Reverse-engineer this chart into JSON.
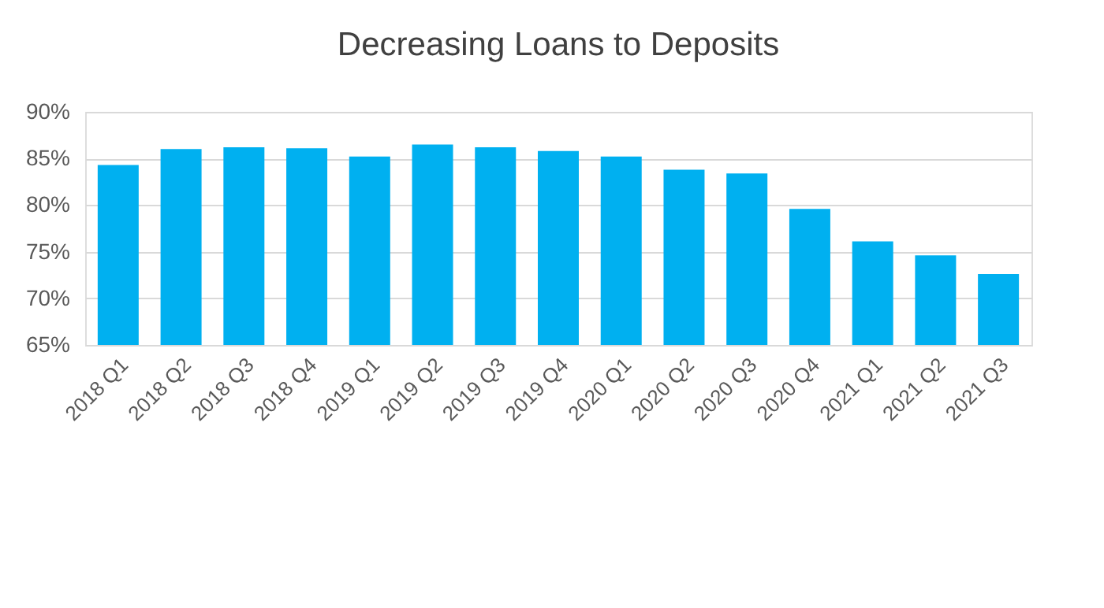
{
  "chart_data": {
    "type": "bar",
    "title": "Decreasing Loans to Deposits",
    "categories": [
      "2018 Q1",
      "2018 Q2",
      "2018 Q3",
      "2018 Q4",
      "2019 Q1",
      "2019 Q2",
      "2019 Q3",
      "2019 Q4",
      "2020 Q1",
      "2020 Q2",
      "2020 Q3",
      "2020 Q4",
      "2021 Q1",
      "2021 Q2",
      "2021 Q3"
    ],
    "values": [
      84.3,
      86.0,
      86.2,
      86.1,
      85.2,
      86.5,
      86.2,
      85.8,
      85.2,
      83.8,
      83.4,
      79.6,
      76.1,
      74.6,
      72.6
    ],
    "color": "#00b0f0",
    "ylim": [
      65,
      90
    ],
    "yticks": [
      {
        "value": 65,
        "label": "65%"
      },
      {
        "value": 70,
        "label": "70%"
      },
      {
        "value": 75,
        "label": "75%"
      },
      {
        "value": 80,
        "label": "80%"
      },
      {
        "value": 85,
        "label": "85%"
      },
      {
        "value": 90,
        "label": "90%"
      }
    ],
    "grid": "y"
  }
}
